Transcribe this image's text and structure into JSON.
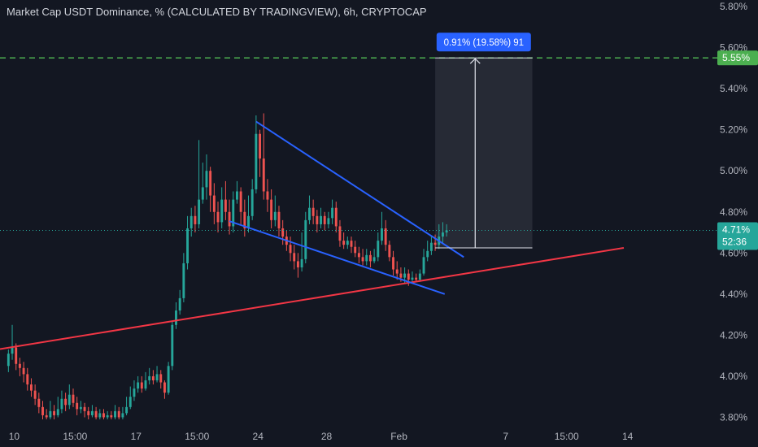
{
  "title": "Market Cap USDT Dominance, % (CALCULATED BY TRADINGVIEW), 6h, CRYPTOCAP",
  "colors": {
    "background": "#131722",
    "up": "#26a69a",
    "down": "#ef5350",
    "wedge": "#2962ff",
    "support": "#f23645",
    "target": "#4caf50",
    "price": "#26a69a",
    "measure": "#2962ff"
  },
  "current_price": {
    "label": "4.71%",
    "countdown": "52:36"
  },
  "target_price": {
    "label": "5.55%"
  },
  "measurement": {
    "label": "0.91% (19.58%) 91"
  },
  "chart_data": {
    "type": "candlestick",
    "title": "Market Cap USDT Dominance, % (CALCULATED BY TRADINGVIEW), 6h, CRYPTOCAP",
    "y_unit": "%",
    "ylim": [
      3.79,
      5.82
    ],
    "x_range": [
      0,
      181
    ],
    "y_ticks": [
      "5.80%",
      "5.60%",
      "5.40%",
      "5.20%",
      "5.00%",
      "4.80%",
      "4.60%",
      "4.40%",
      "4.20%",
      "4.00%",
      "3.80%"
    ],
    "y_tick_values": [
      5.8,
      5.6,
      5.4,
      5.2,
      5.0,
      4.8,
      4.6,
      4.4,
      4.2,
      4.0,
      3.8
    ],
    "x_ticks": [
      "10",
      "15:00",
      "17",
      "15:00",
      "24",
      "28",
      "Feb",
      "7",
      "15:00",
      "14"
    ],
    "x_tick_positions": [
      2,
      18,
      34,
      50,
      66,
      84,
      103,
      131,
      147,
      163
    ],
    "candles": [
      [
        4.05,
        4.11,
        4.13,
        4.02
      ],
      [
        4.11,
        4.14,
        4.25,
        4.08
      ],
      [
        4.14,
        4.06,
        4.16,
        4.03
      ],
      [
        4.06,
        4.04,
        4.09,
        4.0
      ],
      [
        4.04,
        4.01,
        4.07,
        3.97
      ],
      [
        4.01,
        3.96,
        4.04,
        3.93
      ],
      [
        3.96,
        3.93,
        3.99,
        3.9
      ],
      [
        3.93,
        3.89,
        3.96,
        3.86
      ],
      [
        3.89,
        3.85,
        3.92,
        3.82
      ],
      [
        3.85,
        3.81,
        3.88,
        3.79
      ],
      [
        3.81,
        3.8,
        3.84,
        3.79
      ],
      [
        3.8,
        3.83,
        3.88,
        3.79
      ],
      [
        3.83,
        3.81,
        3.86,
        3.79
      ],
      [
        3.81,
        3.84,
        3.9,
        3.8
      ],
      [
        3.84,
        3.89,
        3.93,
        3.82
      ],
      [
        3.89,
        3.86,
        3.92,
        3.83
      ],
      [
        3.86,
        3.91,
        3.96,
        3.84
      ],
      [
        3.91,
        3.87,
        3.94,
        3.85
      ],
      [
        3.87,
        3.84,
        3.9,
        3.81
      ],
      [
        3.84,
        3.85,
        3.88,
        3.82
      ],
      [
        3.85,
        3.83,
        3.87,
        3.8
      ],
      [
        3.83,
        3.81,
        3.85,
        3.79
      ],
      [
        3.81,
        3.83,
        3.86,
        3.8
      ],
      [
        3.83,
        3.8,
        3.85,
        3.79
      ],
      [
        3.8,
        3.82,
        3.84,
        3.79
      ],
      [
        3.82,
        3.8,
        3.84,
        3.79
      ],
      [
        3.8,
        3.81,
        3.83,
        3.79
      ],
      [
        3.81,
        3.8,
        3.83,
        3.79
      ],
      [
        3.8,
        3.83,
        3.86,
        3.79
      ],
      [
        3.83,
        3.8,
        3.85,
        3.79
      ],
      [
        3.8,
        3.82,
        3.85,
        3.79
      ],
      [
        3.82,
        3.85,
        3.9,
        3.81
      ],
      [
        3.85,
        3.9,
        3.95,
        3.84
      ],
      [
        3.9,
        3.94,
        3.98,
        3.88
      ],
      [
        3.94,
        3.97,
        4.0,
        3.92
      ],
      [
        3.97,
        3.94,
        4.0,
        3.92
      ],
      [
        3.94,
        3.98,
        4.02,
        3.93
      ],
      [
        3.98,
        4.0,
        4.04,
        3.96
      ],
      [
        4.0,
        3.98,
        4.03,
        3.96
      ],
      [
        3.98,
        4.01,
        4.05,
        3.97
      ],
      [
        4.01,
        3.97,
        4.03,
        3.94
      ],
      [
        3.97,
        3.92,
        3.98,
        3.89
      ],
      [
        3.92,
        4.05,
        4.07,
        3.91
      ],
      [
        4.05,
        4.25,
        4.27,
        4.03
      ],
      [
        4.25,
        4.32,
        4.36,
        4.23
      ],
      [
        4.32,
        4.38,
        4.42,
        4.3
      ],
      [
        4.38,
        4.55,
        4.6,
        4.36
      ],
      [
        4.55,
        4.72,
        4.78,
        4.52
      ],
      [
        4.72,
        4.78,
        4.82,
        4.68
      ],
      [
        4.78,
        4.74,
        4.83,
        4.7
      ],
      [
        4.74,
        4.86,
        5.15,
        4.72
      ],
      [
        4.86,
        4.92,
        5.04,
        4.84
      ],
      [
        4.92,
        5.0,
        5.08,
        4.86
      ],
      [
        5.0,
        4.88,
        5.02,
        4.8
      ],
      [
        4.88,
        4.8,
        4.94,
        4.74
      ],
      [
        4.8,
        4.75,
        4.85,
        4.7
      ],
      [
        4.75,
        4.86,
        4.92,
        4.72
      ],
      [
        4.86,
        4.8,
        4.95,
        4.76
      ],
      [
        4.8,
        4.73,
        4.86,
        4.69
      ],
      [
        4.73,
        4.86,
        4.9,
        4.7
      ],
      [
        4.86,
        4.9,
        4.95,
        4.84
      ],
      [
        4.9,
        4.8,
        4.92,
        4.74
      ],
      [
        4.8,
        4.72,
        4.86,
        4.68
      ],
      [
        4.72,
        4.78,
        4.88,
        4.7
      ],
      [
        4.78,
        4.91,
        4.96,
        4.76
      ],
      [
        4.91,
        5.18,
        5.27,
        4.89
      ],
      [
        5.18,
        5.06,
        5.2,
        4.97
      ],
      [
        5.06,
        4.9,
        5.28,
        4.86
      ],
      [
        4.9,
        4.86,
        4.96,
        4.8
      ],
      [
        4.86,
        4.76,
        4.91,
        4.72
      ],
      [
        4.76,
        4.8,
        4.88,
        4.73
      ],
      [
        4.8,
        4.72,
        4.83,
        4.68
      ],
      [
        4.72,
        4.68,
        4.76,
        4.64
      ],
      [
        4.68,
        4.64,
        4.71,
        4.61
      ],
      [
        4.64,
        4.6,
        4.68,
        4.56
      ],
      [
        4.6,
        4.56,
        4.64,
        4.52
      ],
      [
        4.56,
        4.53,
        4.6,
        4.48
      ],
      [
        4.53,
        4.57,
        4.7,
        4.51
      ],
      [
        4.57,
        4.76,
        4.8,
        4.55
      ],
      [
        4.76,
        4.82,
        4.88,
        4.74
      ],
      [
        4.82,
        4.78,
        4.86,
        4.74
      ],
      [
        4.78,
        4.74,
        4.81,
        4.7
      ],
      [
        4.74,
        4.78,
        4.82,
        4.72
      ],
      [
        4.78,
        4.74,
        4.8,
        4.71
      ],
      [
        4.74,
        4.77,
        4.8,
        4.72
      ],
      [
        4.77,
        4.82,
        4.86,
        4.74
      ],
      [
        4.82,
        4.73,
        4.85,
        4.7
      ],
      [
        4.73,
        4.66,
        4.76,
        4.63
      ],
      [
        4.66,
        4.64,
        4.7,
        4.62
      ],
      [
        4.64,
        4.66,
        4.68,
        4.62
      ],
      [
        4.66,
        4.63,
        4.68,
        4.6
      ],
      [
        4.63,
        4.6,
        4.66,
        4.58
      ],
      [
        4.6,
        4.58,
        4.63,
        4.55
      ],
      [
        4.58,
        4.56,
        4.62,
        4.54
      ],
      [
        4.56,
        4.59,
        4.62,
        4.54
      ],
      [
        4.59,
        4.56,
        4.61,
        4.53
      ],
      [
        4.56,
        4.58,
        4.62,
        4.55
      ],
      [
        4.58,
        4.66,
        4.7,
        4.56
      ],
      [
        4.66,
        4.72,
        4.8,
        4.64
      ],
      [
        4.72,
        4.64,
        4.76,
        4.61
      ],
      [
        4.64,
        4.58,
        4.66,
        4.56
      ],
      [
        4.58,
        4.52,
        4.61,
        4.49
      ],
      [
        4.52,
        4.5,
        4.56,
        4.47
      ],
      [
        4.5,
        4.48,
        4.53,
        4.46
      ],
      [
        4.48,
        4.5,
        4.53,
        4.45
      ],
      [
        4.5,
        4.47,
        4.52,
        4.44
      ],
      [
        4.47,
        4.48,
        4.51,
        4.45
      ],
      [
        4.48,
        4.47,
        4.5,
        4.46
      ],
      [
        4.47,
        4.5,
        4.52,
        4.46
      ],
      [
        4.5,
        4.58,
        4.62,
        4.49
      ],
      [
        4.58,
        4.61,
        4.66,
        4.56
      ],
      [
        4.61,
        4.65,
        4.68,
        4.59
      ],
      [
        4.65,
        4.64,
        4.69,
        4.61
      ],
      [
        4.64,
        4.68,
        4.74,
        4.62
      ],
      [
        4.68,
        4.7,
        4.75,
        4.65
      ],
      [
        4.7,
        4.71,
        4.74,
        4.68
      ]
    ]
  }
}
